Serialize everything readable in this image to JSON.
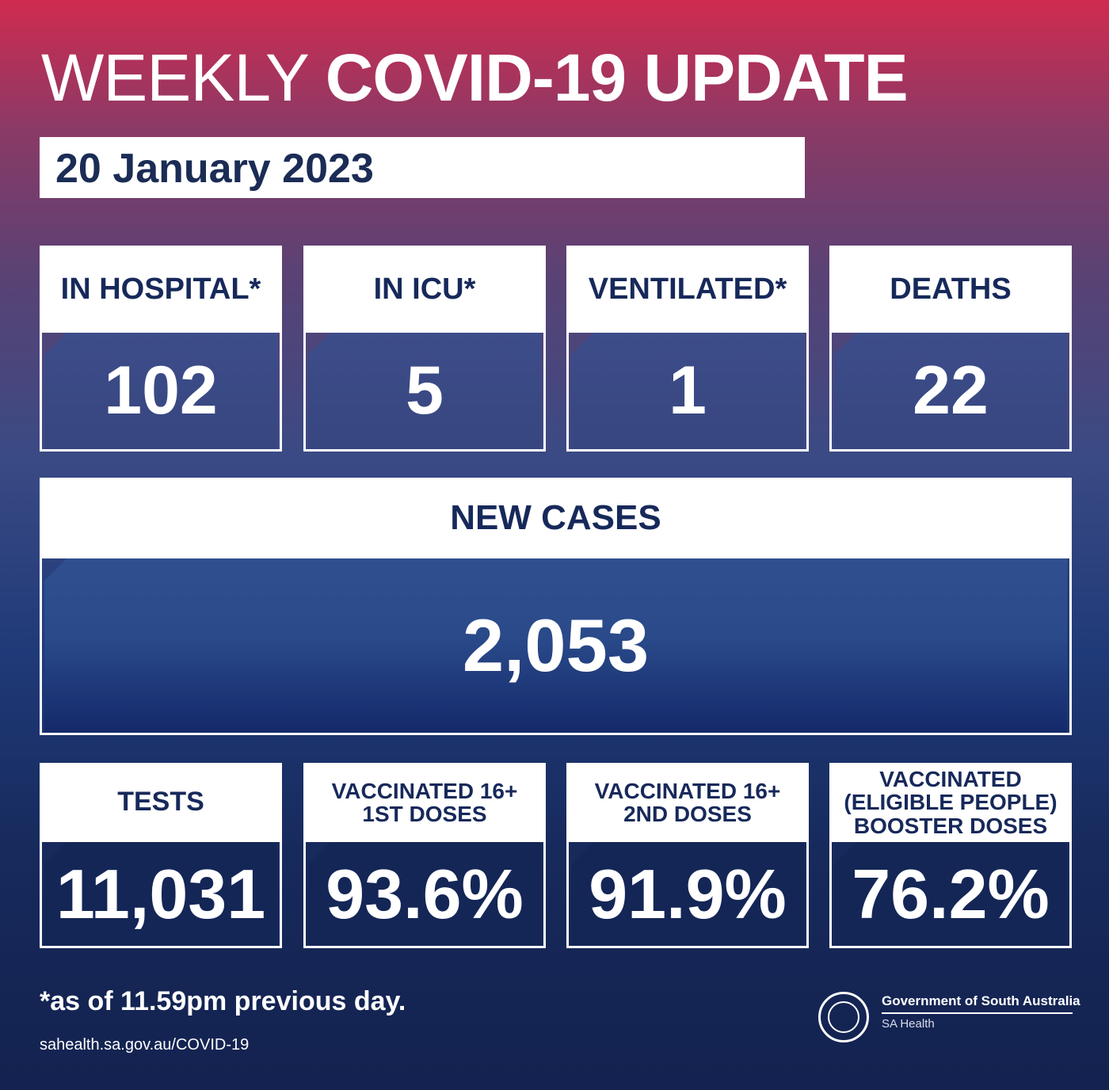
{
  "header": {
    "title_light": "WEEKLY",
    "title_bold": "COVID-19 UPDATE",
    "date": "20 January 2023"
  },
  "top_stats": [
    {
      "label": "IN HOSPITAL*",
      "value": "102"
    },
    {
      "label": "IN ICU*",
      "value": "5"
    },
    {
      "label": "VENTILATED*",
      "value": "1"
    },
    {
      "label": "DEATHS",
      "value": "22"
    }
  ],
  "new_cases": {
    "label": "NEW CASES",
    "value": "2,053"
  },
  "bottom_stats": [
    {
      "label_lines": [
        "TESTS"
      ],
      "value": "11,031"
    },
    {
      "label_lines": [
        "VACCINATED 16+",
        "1ST DOSES"
      ],
      "value": "93.6%"
    },
    {
      "label_lines": [
        "VACCINATED 16+",
        "2ND DOSES"
      ],
      "value": "91.9%"
    },
    {
      "label_lines": [
        "VACCINATED",
        "(ELIGIBLE PEOPLE)",
        "BOOSTER DOSES"
      ],
      "value": "76.2%"
    }
  ],
  "footer": {
    "note": "*as of 11.59pm previous day.",
    "url": "sahealth.sa.gov.au/COVID-19",
    "org": "Government of South Australia",
    "dept": "SA Health"
  }
}
